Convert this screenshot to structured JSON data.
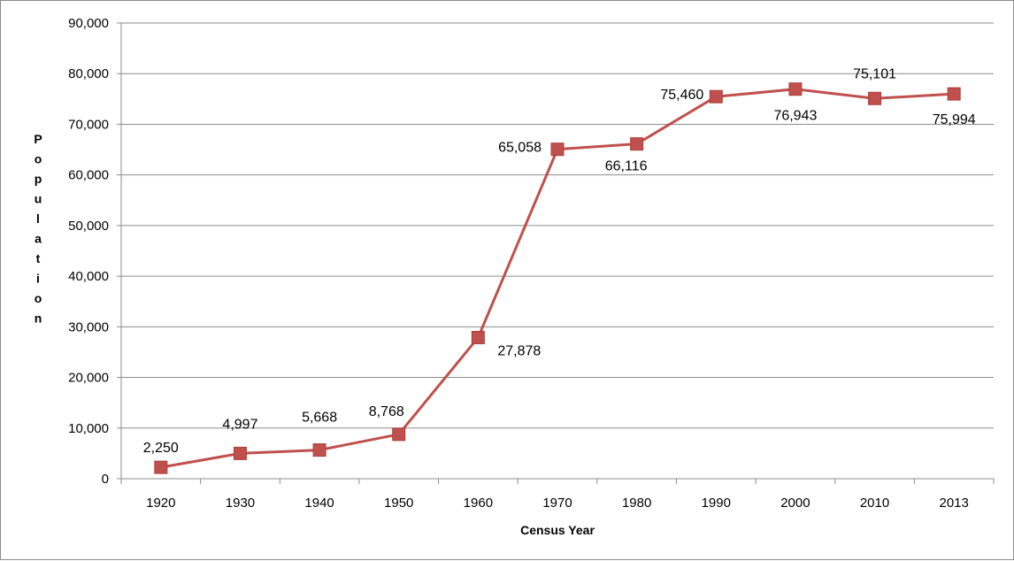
{
  "chart_data": {
    "type": "line",
    "title": "",
    "xlabel": "Census Year",
    "ylabel": "Population",
    "categories": [
      "1920",
      "1930",
      "1940",
      "1950",
      "1960",
      "1970",
      "1980",
      "1990",
      "2000",
      "2010",
      "2013"
    ],
    "series": [
      {
        "values": [
          2250,
          4997,
          5668,
          8768,
          27878,
          65058,
          66116,
          75460,
          76943,
          75101,
          75994
        ],
        "labels": [
          "2,250",
          "4,997",
          "5,668",
          "8,768",
          "27,878",
          "65,058",
          "66,116",
          "75,460",
          "76,943",
          "75,101",
          "75,994"
        ],
        "color": "#c0504d",
        "marker": "square"
      }
    ],
    "ylim": [
      0,
      90000
    ],
    "yticks": [
      0,
      10000,
      20000,
      30000,
      40000,
      50000,
      60000,
      70000,
      80000,
      90000
    ],
    "ytick_labels": [
      "0",
      "10,000",
      "20,000",
      "30,000",
      "40,000",
      "50,000",
      "60,000",
      "70,000",
      "80,000",
      "90,000"
    ],
    "grid": true,
    "legend": "none"
  }
}
